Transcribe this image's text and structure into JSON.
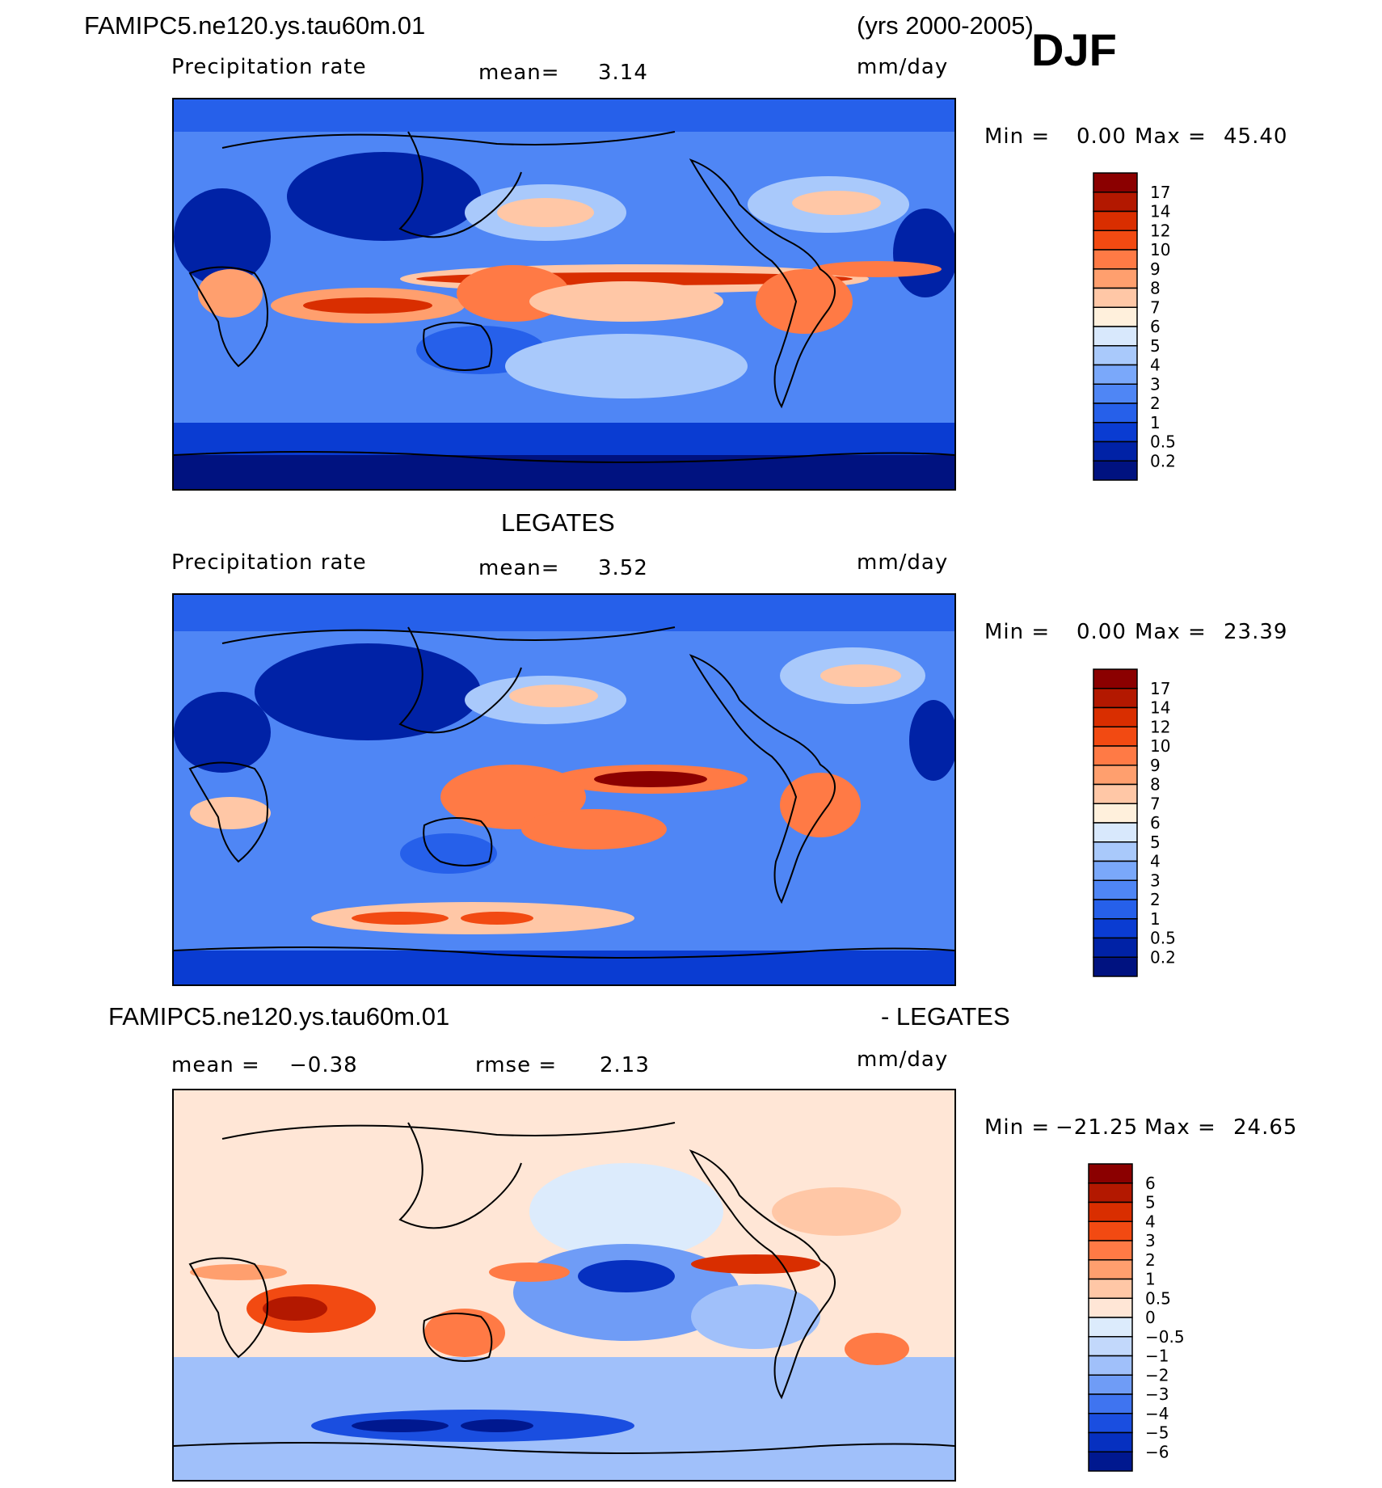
{
  "chart_data": [
    {
      "type": "heatmap",
      "title": "FAMIPC5.ne120.ys.tau60m.01",
      "title_right": "(yrs 2000-2005)",
      "season": "DJF",
      "variable": "Precipitation rate",
      "mean_label": "mean=",
      "mean_value": "3.14",
      "units": "mm/day",
      "min_label": "Min =",
      "min_value": "0.00",
      "max_label": "Max =",
      "max_value": "45.40",
      "colorbar_levels": [
        "17",
        "14",
        "12",
        "10",
        "9",
        "8",
        "7",
        "6",
        "5",
        "4",
        "3",
        "2",
        "1",
        "0.5",
        "0.2"
      ],
      "colorbar_colors": [
        "#8b0000",
        "#b31800",
        "#d92e00",
        "#f24a12",
        "#ff7a45",
        "#ff9f6e",
        "#ffc7a6",
        "#fff0dc",
        "#d8e8fc",
        "#a9c9fb",
        "#7aa8fa",
        "#4f86f5",
        "#2660ea",
        "#0a3cd2",
        "#0022a6",
        "#001280"
      ]
    },
    {
      "type": "heatmap",
      "title": "LEGATES",
      "variable": "Precipitation rate",
      "mean_label": "mean=",
      "mean_value": "3.52",
      "units": "mm/day",
      "min_label": "Min =",
      "min_value": "0.00",
      "max_label": "Max =",
      "max_value": "23.39",
      "colorbar_levels": [
        "17",
        "14",
        "12",
        "10",
        "9",
        "8",
        "7",
        "6",
        "5",
        "4",
        "3",
        "2",
        "1",
        "0.5",
        "0.2"
      ],
      "colorbar_colors": [
        "#8b0000",
        "#b31800",
        "#d92e00",
        "#f24a12",
        "#ff7a45",
        "#ff9f6e",
        "#ffc7a6",
        "#fff0dc",
        "#d8e8fc",
        "#a9c9fb",
        "#7aa8fa",
        "#4f86f5",
        "#2660ea",
        "#0a3cd2",
        "#0022a6",
        "#001280"
      ]
    },
    {
      "type": "heatmap",
      "title_left": "FAMIPC5.ne120.ys.tau60m.01",
      "title_right": "- LEGATES",
      "mean_label": "mean =",
      "mean_value": "−0.38",
      "rmse_label": "rmse =",
      "rmse_value": "2.13",
      "units": "mm/day",
      "min_label": "Min =",
      "min_value": "−21.25",
      "max_label": "Max =",
      "max_value": "24.65",
      "colorbar_levels": [
        "6",
        "5",
        "4",
        "3",
        "2",
        "1",
        "0.5",
        "0",
        "−0.5",
        "−1",
        "−2",
        "−3",
        "−4",
        "−5",
        "−6"
      ],
      "colorbar_colors": [
        "#8b0000",
        "#b31800",
        "#d92e00",
        "#f24a12",
        "#ff7a45",
        "#ff9f6e",
        "#ffc7a6",
        "#ffe6d6",
        "#dcebfc",
        "#c2d8fb",
        "#a0c0fa",
        "#6f9cf6",
        "#3f74f0",
        "#1a4ee0",
        "#0630c0",
        "#00188f"
      ]
    }
  ]
}
